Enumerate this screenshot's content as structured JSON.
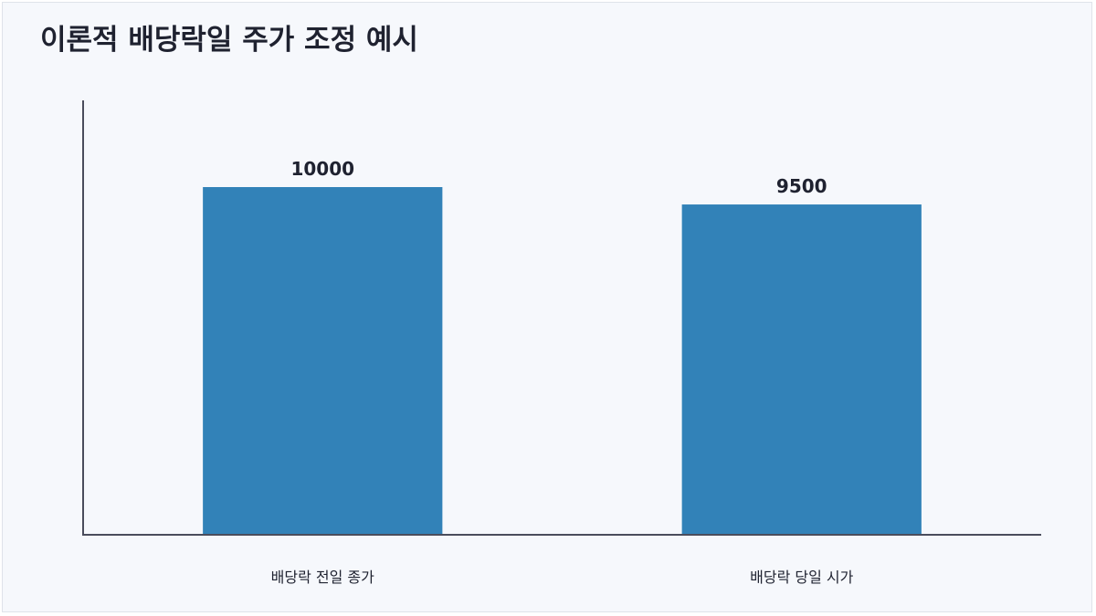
{
  "chart_data": {
    "type": "bar",
    "title": "이론적 배당락일 주가 조정 예시",
    "categories": [
      "배당락 전일 종가",
      "배당락 당일 시가"
    ],
    "values": [
      10000,
      9500
    ],
    "xlabel": "",
    "ylabel": "",
    "ylim": [
      0,
      10000
    ],
    "grid": false,
    "legend": "none",
    "bar_color": "#3282b8",
    "axis_color": "#4a4d5c"
  }
}
